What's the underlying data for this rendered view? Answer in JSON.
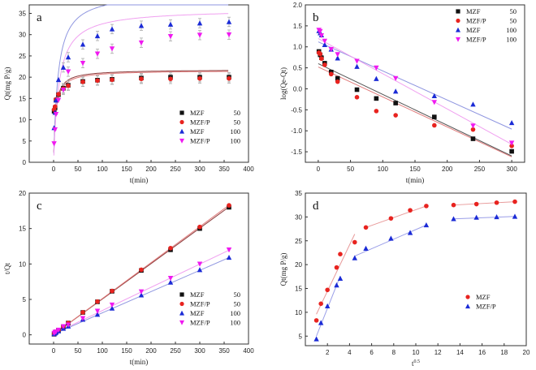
{
  "chart_data": [
    {
      "id": "a",
      "type": "scatter",
      "panel_label": "a",
      "xlabel": "t(min)",
      "ylabel": "Qt(mg P/g)",
      "xlim": [
        -50,
        400
      ],
      "ylim": [
        0,
        37
      ],
      "xticks": [
        0,
        50,
        100,
        150,
        200,
        250,
        300,
        350,
        400
      ],
      "yticks": [
        0,
        5,
        10,
        15,
        20,
        25,
        30,
        35
      ],
      "legend_position": "bottom-right",
      "x": [
        1,
        3,
        5,
        10,
        20,
        30,
        60,
        90,
        120,
        180,
        240,
        300,
        360
      ],
      "series": [
        {
          "name": "MZF    50",
          "marker": "square",
          "color": "#111111",
          "values": [
            12.0,
            12.8,
            14.6,
            15.9,
            17.4,
            18.1,
            19.0,
            19.3,
            19.5,
            19.8,
            20.0,
            20.0,
            20.0
          ],
          "fit": {
            "type": "curve",
            "color": "#8b3a3a",
            "qe": 21.8,
            "k": 0.12
          }
        },
        {
          "name": "MZF/P  50",
          "marker": "circle",
          "color": "#e8231f",
          "values": [
            12.4,
            13.1,
            14.8,
            16.0,
            17.3,
            18.0,
            18.9,
            19.2,
            19.4,
            19.6,
            19.6,
            19.7,
            19.7
          ],
          "fit": {
            "type": "curve",
            "color": "#e07a7a",
            "qe": 21.6,
            "k": 0.11
          }
        },
        {
          "name": "MZF    100",
          "marker": "triangle-up",
          "color": "#1b2bd6",
          "values": [
            8.1,
            11.7,
            14.6,
            19.4,
            22.3,
            24.7,
            27.7,
            29.7,
            31.3,
            32.1,
            32.4,
            32.7,
            33.0
          ],
          "fit": {
            "type": "curve",
            "color": "#8f96e0",
            "qe": 40.0,
            "k": 0.028
          }
        },
        {
          "name": "MZF/P 100",
          "marker": "triangle-down",
          "color": "#f019f0",
          "values": [
            4.4,
            7.7,
            11.3,
            14.6,
            17.0,
            21.3,
            23.3,
            25.5,
            26.7,
            28.1,
            29.6,
            29.9,
            30.0
          ],
          "fit": {
            "type": "curve",
            "color": "#f0a0f0",
            "qe": 36.0,
            "k": 0.026
          }
        }
      ]
    },
    {
      "id": "b",
      "type": "scatter",
      "panel_label": "b",
      "xlabel": "t(min)",
      "ylabel": "log(Qe-Qt)",
      "xlim": [
        -20,
        320
      ],
      "ylim": [
        -1.75,
        2.0
      ],
      "xticks": [
        0,
        50,
        100,
        150,
        200,
        250,
        300
      ],
      "yticks": [
        -1.5,
        -1.0,
        -0.5,
        0.0,
        0.5,
        1.0,
        1.5,
        2.0
      ],
      "legend_position": "top-right",
      "x": [
        1,
        3,
        5,
        10,
        20,
        30,
        60,
        90,
        120,
        180,
        240,
        300
      ],
      "series": [
        {
          "name": "MZF    50",
          "marker": "square",
          "color": "#111111",
          "values": [
            0.89,
            0.81,
            0.74,
            0.61,
            0.4,
            0.25,
            -0.02,
            -0.23,
            -0.34,
            -0.67,
            -1.19,
            -1.49
          ],
          "fit": {
            "type": "line",
            "color": "#555555",
            "y0": 0.6,
            "y300": -1.6
          }
        },
        {
          "name": "MZF/P  50",
          "marker": "circle",
          "color": "#e8231f",
          "values": [
            0.86,
            0.83,
            0.72,
            0.57,
            0.35,
            0.17,
            -0.2,
            -0.53,
            -0.63,
            -0.87,
            -0.97,
            -1.36
          ],
          "fit": {
            "type": "line",
            "color": "#e07a7a",
            "y0": 0.52,
            "y300": -1.62
          }
        },
        {
          "name": "MZF    100",
          "marker": "triangle-up",
          "color": "#1b2bd6",
          "values": [
            1.38,
            1.33,
            1.28,
            1.05,
            0.94,
            0.73,
            0.53,
            0.24,
            -0.06,
            -0.17,
            -0.37,
            -0.81
          ],
          "fit": {
            "type": "line",
            "color": "#8f96e0",
            "y0": 1.12,
            "y300": -0.96
          }
        },
        {
          "name": "MZF/P 100",
          "marker": "triangle-down",
          "color": "#f019f0",
          "values": [
            1.4,
            1.37,
            1.27,
            1.14,
            0.94,
            0.82,
            0.66,
            0.5,
            0.25,
            -0.32,
            -0.88,
            -1.29
          ],
          "fit": {
            "type": "line",
            "color": "#f0a0f0",
            "y0": 1.2,
            "y300": -1.32
          }
        }
      ]
    },
    {
      "id": "c",
      "type": "scatter",
      "panel_label": "c",
      "xlabel": "t(min)",
      "ylabel": "t/Qt",
      "xlim": [
        -50,
        400
      ],
      "ylim": [
        -1.3,
        20
      ],
      "xticks": [
        0,
        50,
        100,
        150,
        200,
        250,
        300,
        350,
        400
      ],
      "yticks": [
        0,
        5,
        10,
        15,
        20
      ],
      "legend_position": "bottom-right",
      "x": [
        1,
        3,
        5,
        10,
        20,
        30,
        60,
        90,
        120,
        180,
        240,
        300,
        360
      ],
      "series": [
        {
          "name": "MZF    50",
          "marker": "square",
          "color": "#111111",
          "values": [
            0.08,
            0.23,
            0.34,
            0.63,
            1.15,
            1.66,
            3.16,
            4.66,
            6.15,
            9.09,
            12.0,
            15.0,
            18.0
          ],
          "fit": {
            "type": "line",
            "color": "#8b3a3a",
            "y0": 0.05,
            "y360": 18.05
          }
        },
        {
          "name": "MZF/P  50",
          "marker": "circle",
          "color": "#e8231f",
          "values": [
            0.08,
            0.23,
            0.34,
            0.63,
            1.16,
            1.67,
            3.17,
            4.69,
            6.19,
            9.18,
            12.24,
            15.23,
            18.27
          ],
          "fit": {
            "type": "line",
            "color": "#e07a7a",
            "y0": 0.05,
            "y360": 18.3
          }
        },
        {
          "name": "MZF    100",
          "marker": "triangle-up",
          "color": "#1b2bd6",
          "values": [
            0.12,
            0.26,
            0.34,
            0.52,
            0.9,
            1.21,
            2.17,
            2.87,
            3.74,
            5.6,
            7.41,
            9.17,
            10.91
          ],
          "fit": {
            "type": "line",
            "color": "#8f96e0",
            "y0": 0.1,
            "y360": 10.9
          }
        },
        {
          "name": "MZF/P 100",
          "marker": "triangle-down",
          "color": "#f019f0",
          "values": [
            0.23,
            0.39,
            0.44,
            0.68,
            1.18,
            1.41,
            2.33,
            3.36,
            4.24,
            6.1,
            8.0,
            10.0,
            12.0
          ],
          "fit": {
            "type": "line",
            "color": "#f0a0f0",
            "y0": 0.15,
            "y360": 11.95
          }
        }
      ]
    },
    {
      "id": "d",
      "type": "scatter",
      "panel_label": "d",
      "xlabel": "t^0.5",
      "ylabel": "Qt(mg P/g)",
      "xlim": [
        0,
        20
      ],
      "ylim": [
        3,
        35
      ],
      "xticks": [
        2,
        4,
        6,
        8,
        10,
        12,
        14,
        16,
        18,
        20
      ],
      "yticks": [
        5,
        10,
        15,
        20,
        25,
        30,
        35
      ],
      "legend_position": "bottom-right",
      "x": [
        1.0,
        1.41,
        2.0,
        2.83,
        3.16,
        4.47,
        5.48,
        7.75,
        9.49,
        10.95,
        13.42,
        15.49,
        17.32,
        18.97
      ],
      "series": [
        {
          "name": "MZF",
          "marker": "circle",
          "color": "#e8231f",
          "values": [
            8.3,
            11.8,
            14.7,
            19.4,
            22.2,
            24.7,
            27.8,
            29.7,
            31.4,
            32.3,
            32.5,
            32.7,
            33.0,
            33.2
          ],
          "fit_segments": [
            {
              "x": [
                1.0,
                4.47
              ],
              "y": [
                9.6,
                26.4
              ]
            },
            {
              "x": [
                5.48,
                10.95
              ],
              "y": [
                27.8,
                32.3
              ]
            },
            {
              "x": [
                13.42,
                18.97
              ],
              "y": [
                32.5,
                33.2
              ]
            }
          ],
          "fit_color": "#e89a9a"
        },
        {
          "name": "MZF/P",
          "marker": "triangle-up",
          "color": "#1b2bd6",
          "values": [
            4.4,
            7.8,
            11.3,
            15.7,
            17.1,
            21.4,
            23.4,
            25.5,
            26.7,
            28.3,
            29.6,
            29.9,
            30.0,
            30.1
          ],
          "fit_segments": [
            {
              "x": [
                1.0,
                3.16
              ],
              "y": [
                5.0,
                17.6
              ]
            },
            {
              "x": [
                4.47,
                10.95
              ],
              "y": [
                21.8,
                28.3
              ]
            },
            {
              "x": [
                13.42,
                18.97
              ],
              "y": [
                29.6,
                30.1
              ]
            }
          ],
          "fit_color": "#9a9ee8"
        }
      ]
    }
  ]
}
